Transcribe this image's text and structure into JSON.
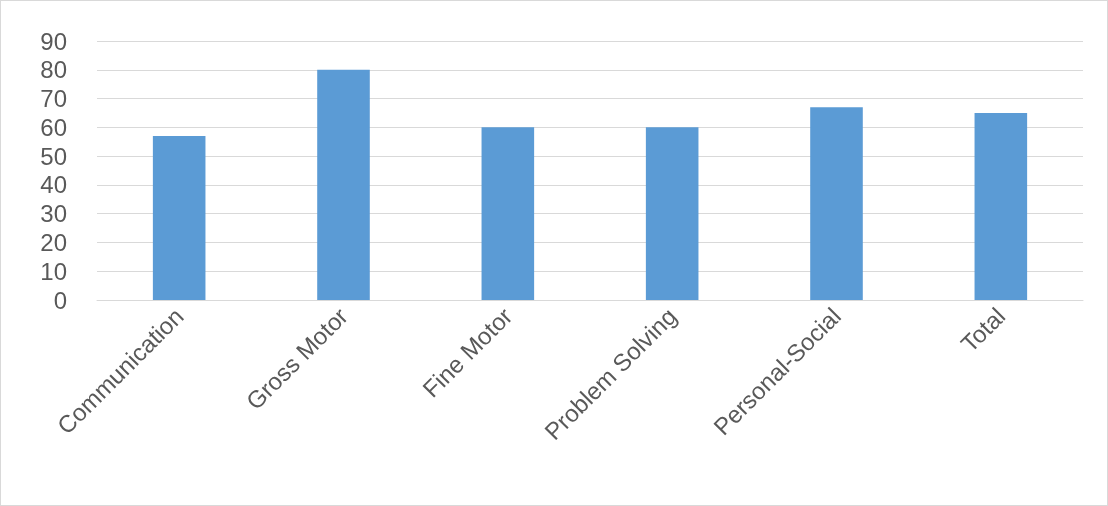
{
  "chart_data": {
    "type": "bar",
    "categories": [
      "Communication",
      "Gross Motor",
      "Fine Motor",
      "Problem Solving",
      "Personal-Social",
      "Total"
    ],
    "values": [
      57,
      80,
      60,
      60,
      67,
      65
    ],
    "color": "#5b9bd5",
    "ylim": [
      0,
      90
    ],
    "yticks": [
      0,
      10,
      20,
      30,
      40,
      50,
      60,
      70,
      80,
      90
    ],
    "grid": true
  }
}
